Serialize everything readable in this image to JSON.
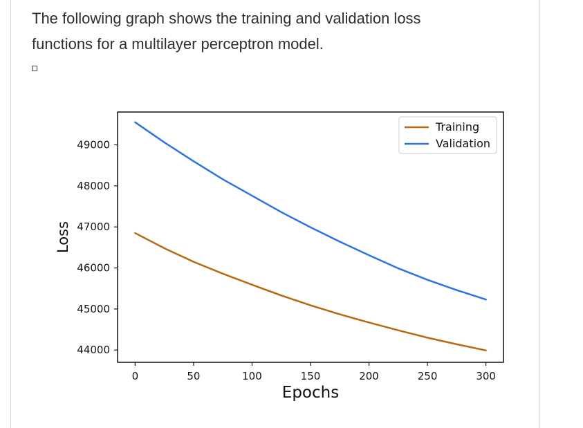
{
  "question": {
    "line1": "The following graph shows the training and validation loss",
    "line2": "functions for a multilayer perceptron model."
  },
  "chart_data": {
    "type": "line",
    "xlabel": "Epochs",
    "ylabel": "Loss",
    "xlim": [
      -15,
      315
    ],
    "ylim": [
      43700,
      49800
    ],
    "xticks": [
      0,
      50,
      100,
      150,
      200,
      250,
      300
    ],
    "yticks": [
      44000,
      45000,
      46000,
      47000,
      48000,
      49000
    ],
    "legend_position": "top-right",
    "series": [
      {
        "name": "Training",
        "color": "#b8680e",
        "x": [
          0,
          25,
          50,
          75,
          100,
          125,
          150,
          175,
          200,
          225,
          250,
          275,
          300
        ],
        "values": [
          46850,
          46480,
          46150,
          45860,
          45590,
          45330,
          45090,
          44870,
          44670,
          44480,
          44300,
          44140,
          43990
        ]
      },
      {
        "name": "Validation",
        "color": "#2a73e8",
        "x": [
          0,
          25,
          50,
          75,
          100,
          125,
          150,
          175,
          200,
          225,
          250,
          275,
          300
        ],
        "values": [
          49550,
          49060,
          48600,
          48160,
          47760,
          47360,
          46990,
          46640,
          46310,
          45990,
          45710,
          45460,
          45230
        ]
      }
    ]
  },
  "colors": {
    "axis": "#111111",
    "text": "#2d2d2d"
  }
}
